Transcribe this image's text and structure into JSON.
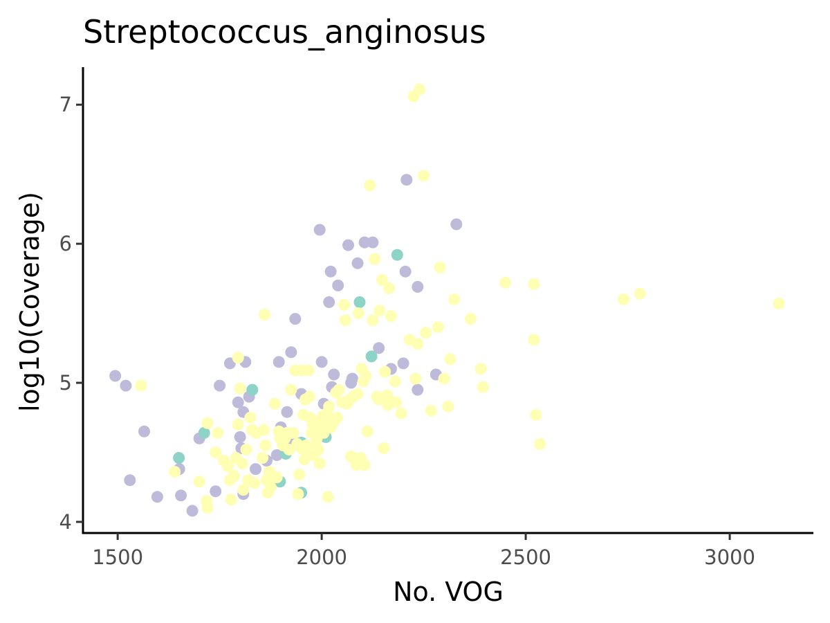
{
  "chart_data": {
    "type": "scatter",
    "title": "Streptococcus_anginosus",
    "xlabel": "No. VOG",
    "ylabel": "log10(Coverage)",
    "xlim": [
      1415,
      3205
    ],
    "ylim": [
      3.92,
      7.27
    ],
    "xticks": [
      1500,
      2000,
      2500,
      3000
    ],
    "yticks": [
      4,
      5,
      6,
      7
    ],
    "grid": false,
    "legend": "none",
    "series": [
      {
        "color": "#BEBADA",
        "points": [
          [
            1494,
            5.05
          ],
          [
            1520,
            4.98
          ],
          [
            1530,
            4.3
          ],
          [
            1565,
            4.65
          ],
          [
            1597,
            4.18
          ],
          [
            1651,
            4.38
          ],
          [
            1655,
            4.19
          ],
          [
            1683,
            4.08
          ],
          [
            1700,
            4.6
          ],
          [
            1740,
            4.22
          ],
          [
            1750,
            4.98
          ],
          [
            1775,
            5.14
          ],
          [
            1795,
            4.86
          ],
          [
            1800,
            4.61
          ],
          [
            1803,
            4.53
          ],
          [
            1808,
            4.79
          ],
          [
            1813,
            5.15
          ],
          [
            1822,
            4.9
          ],
          [
            1838,
            4.38
          ],
          [
            1808,
            4.2
          ],
          [
            1865,
            4.44
          ],
          [
            1890,
            4.48
          ],
          [
            1895,
            5.15
          ],
          [
            1900,
            4.68
          ],
          [
            1915,
            4.79
          ],
          [
            1925,
            5.22
          ],
          [
            1935,
            5.46
          ],
          [
            1950,
            4.92
          ],
          [
            1933,
            4.56
          ],
          [
            1995,
            6.1
          ],
          [
            2005,
            4.85
          ],
          [
            2000,
            5.15
          ],
          [
            2018,
            5.58
          ],
          [
            2022,
            5.8
          ],
          [
            2030,
            5.06
          ],
          [
            2040,
            5.7
          ],
          [
            2065,
            5.99
          ],
          [
            2075,
            5.03
          ],
          [
            2072,
            5.0
          ],
          [
            2088,
            5.86
          ],
          [
            2105,
            6.01
          ],
          [
            2125,
            6.01
          ],
          [
            2140,
            5.25
          ],
          [
            2170,
            5.1
          ],
          [
            2200,
            5.14
          ],
          [
            2205,
            5.8
          ],
          [
            2208,
            6.46
          ],
          [
            2235,
            5.69
          ],
          [
            2235,
            4.95
          ],
          [
            2280,
            5.06
          ],
          [
            2330,
            6.14
          ],
          [
            2025,
            4.97
          ]
        ]
      },
      {
        "color": "#8DD3C7",
        "points": [
          [
            1650,
            4.46
          ],
          [
            1712,
            4.64
          ],
          [
            1830,
            4.95
          ],
          [
            1898,
            4.29
          ],
          [
            1912,
            4.49
          ],
          [
            1950,
            4.57
          ],
          [
            1950,
            4.21
          ],
          [
            2010,
            4.61
          ],
          [
            2093,
            5.58
          ],
          [
            2122,
            5.19
          ],
          [
            2185,
            5.92
          ]
        ]
      },
      {
        "color": "#FFFFB3",
        "points": [
          [
            1557,
            4.98
          ],
          [
            1640,
            4.36
          ],
          [
            1700,
            4.29
          ],
          [
            1720,
            4.71
          ],
          [
            1718,
            4.15
          ],
          [
            1720,
            4.1
          ],
          [
            1740,
            4.5
          ],
          [
            1745,
            4.64
          ],
          [
            1760,
            4.44
          ],
          [
            1770,
            4.4
          ],
          [
            1775,
            4.3
          ],
          [
            1778,
            4.16
          ],
          [
            1785,
            4.33
          ],
          [
            1790,
            4.46
          ],
          [
            1795,
            4.7
          ],
          [
            1795,
            5.18
          ],
          [
            1800,
            4.96
          ],
          [
            1805,
            4.42
          ],
          [
            1808,
            4.23
          ],
          [
            1815,
            4.52
          ],
          [
            1820,
            4.3
          ],
          [
            1825,
            4.75
          ],
          [
            1830,
            4.66
          ],
          [
            1835,
            4.28
          ],
          [
            1840,
            4.64
          ],
          [
            1855,
            4.46
          ],
          [
            1858,
            4.66
          ],
          [
            1860,
            5.49
          ],
          [
            1862,
            4.55
          ],
          [
            1865,
            4.3
          ],
          [
            1868,
            4.21
          ],
          [
            1872,
            4.36
          ],
          [
            1875,
            4.25
          ],
          [
            1880,
            4.33
          ],
          [
            1885,
            4.85
          ],
          [
            1890,
            4.32
          ],
          [
            1895,
            4.65
          ],
          [
            1898,
            4.6
          ],
          [
            1900,
            4.64
          ],
          [
            1905,
            4.55
          ],
          [
            1910,
            4.6
          ],
          [
            1915,
            4.64
          ],
          [
            1920,
            4.52
          ],
          [
            1925,
            4.95
          ],
          [
            1930,
            4.64
          ],
          [
            1935,
            5.09
          ],
          [
            1940,
            4.56
          ],
          [
            1942,
            4.2
          ],
          [
            1945,
            4.34
          ],
          [
            1950,
            4.53
          ],
          [
            1952,
            5.09
          ],
          [
            1955,
            4.77
          ],
          [
            1958,
            4.45
          ],
          [
            1960,
            4.88
          ],
          [
            1962,
            4.55
          ],
          [
            1965,
            4.48
          ],
          [
            1968,
            5.09
          ],
          [
            1970,
            4.9
          ],
          [
            1972,
            4.75
          ],
          [
            1975,
            4.64
          ],
          [
            1978,
            4.7
          ],
          [
            1980,
            4.48
          ],
          [
            1985,
            4.55
          ],
          [
            1988,
            4.6
          ],
          [
            1990,
            4.72
          ],
          [
            1992,
            4.52
          ],
          [
            1995,
            4.42
          ],
          [
            1998,
            4.65
          ],
          [
            2000,
            4.7
          ],
          [
            2003,
            4.76
          ],
          [
            2005,
            4.64
          ],
          [
            2008,
            4.72
          ],
          [
            2012,
            4.78
          ],
          [
            2015,
            4.18
          ],
          [
            2018,
            4.83
          ],
          [
            2022,
            4.68
          ],
          [
            2030,
            4.72
          ],
          [
            2035,
            4.93
          ],
          [
            2038,
            4.75
          ],
          [
            2042,
            4.95
          ],
          [
            2050,
            4.86
          ],
          [
            2055,
            5.56
          ],
          [
            2058,
            5.45
          ],
          [
            2062,
            4.85
          ],
          [
            2068,
            4.88
          ],
          [
            2072,
            4.47
          ],
          [
            2078,
            4.9
          ],
          [
            2082,
            4.44
          ],
          [
            2085,
            4.41
          ],
          [
            2088,
            4.92
          ],
          [
            2090,
            5.5
          ],
          [
            2095,
            4.46
          ],
          [
            2098,
            5.1
          ],
          [
            2102,
            5.01
          ],
          [
            2105,
            4.41
          ],
          [
            2108,
            5.05
          ],
          [
            2112,
            4.65
          ],
          [
            2118,
            6.42
          ],
          [
            2125,
            5.45
          ],
          [
            2130,
            5.89
          ],
          [
            2135,
            4.9
          ],
          [
            2140,
            4.88
          ],
          [
            2142,
            5.52
          ],
          [
            2148,
            5.74
          ],
          [
            2152,
            4.53
          ],
          [
            2155,
            5.08
          ],
          [
            2160,
            4.91
          ],
          [
            2162,
            4.84
          ],
          [
            2165,
            5.68
          ],
          [
            2170,
            5.48
          ],
          [
            2175,
            4.86
          ],
          [
            2180,
            5.01
          ],
          [
            2182,
            4.86
          ],
          [
            2195,
            4.78
          ],
          [
            2215,
            5.31
          ],
          [
            2225,
            7.06
          ],
          [
            2230,
            5.03
          ],
          [
            2235,
            5.28
          ],
          [
            2240,
            7.11
          ],
          [
            2250,
            6.49
          ],
          [
            2255,
            5.36
          ],
          [
            2268,
            4.8
          ],
          [
            2285,
            5.4
          ],
          [
            2290,
            5.83
          ],
          [
            2300,
            5.03
          ],
          [
            2310,
            4.83
          ],
          [
            2315,
            5.17
          ],
          [
            2325,
            5.6
          ],
          [
            2365,
            5.46
          ],
          [
            2390,
            5.1
          ],
          [
            2395,
            4.97
          ],
          [
            2450,
            5.72
          ],
          [
            2520,
            5.71
          ],
          [
            2520,
            5.31
          ],
          [
            2525,
            4.77
          ],
          [
            2535,
            4.56
          ],
          [
            2740,
            5.6
          ],
          [
            2780,
            5.64
          ],
          [
            3120,
            5.57
          ]
        ]
      }
    ]
  }
}
